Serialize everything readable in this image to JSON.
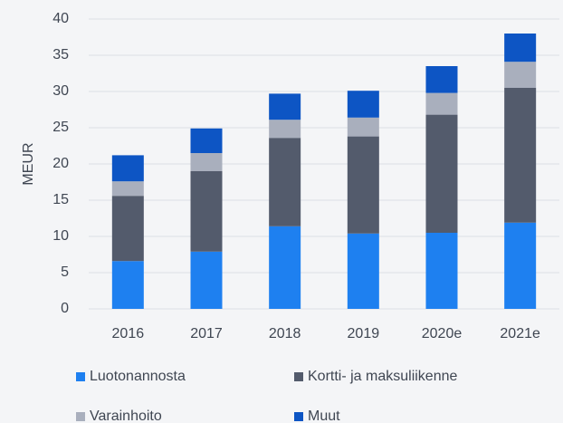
{
  "chart_data": {
    "type": "stacked_bar",
    "y_label": "MEUR",
    "categories": [
      "2016",
      "2017",
      "2018",
      "2019",
      "2020e",
      "2021e"
    ],
    "series": [
      {
        "name": "Luotonannosta",
        "color": "#1e80f0",
        "values": [
          6.6,
          7.9,
          11.4,
          10.4,
          10.5,
          11.9
        ]
      },
      {
        "name": "Kortti- ja maksuliikenne",
        "color": "#535b6c",
        "values": [
          9.0,
          11.1,
          12.2,
          13.4,
          16.3,
          18.6
        ]
      },
      {
        "name": "Varainhoito",
        "color": "#a9afbd",
        "values": [
          2.0,
          2.5,
          2.5,
          2.6,
          3.0,
          3.6
        ]
      },
      {
        "name": "Muut",
        "color": "#0d55c4",
        "values": [
          3.6,
          3.4,
          3.6,
          3.7,
          3.7,
          3.9
        ]
      }
    ],
    "ylim": [
      0,
      40
    ],
    "yticks": [
      0,
      5,
      10,
      15,
      20,
      25,
      30,
      35,
      40
    ],
    "grid": true
  }
}
